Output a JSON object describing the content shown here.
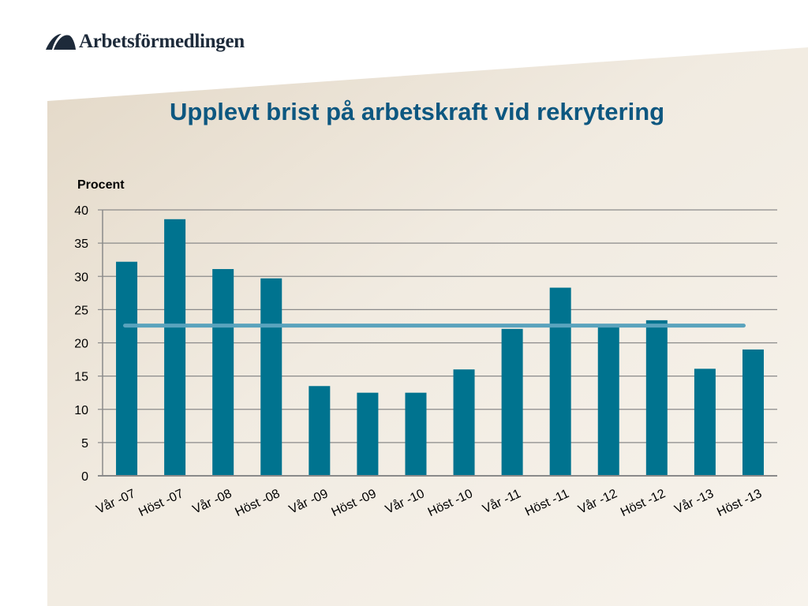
{
  "logo": {
    "text": "Arbetsförmedlingen",
    "icon": "arbetsformedlingen-logo-icon"
  },
  "title": "Upplevt brist på arbetskraft vid rekrytering",
  "chart_data": {
    "type": "bar",
    "ylabel": "Procent",
    "ylim": [
      0,
      40
    ],
    "yticks": [
      0,
      5,
      10,
      15,
      20,
      25,
      30,
      35,
      40
    ],
    "grid": true,
    "categories": [
      "Vår -07",
      "Höst -07",
      "Vår -08",
      "Höst -08",
      "Vår -09",
      "Höst -09",
      "Vår -10",
      "Höst -10",
      "Vår -11",
      "Höst -11",
      "Vår -12",
      "Höst -12",
      "Vår -13",
      "Höst -13"
    ],
    "series": [
      {
        "values": [
          32.2,
          38.6,
          31.1,
          29.7,
          13.5,
          12.5,
          12.5,
          16.0,
          22.1,
          28.3,
          22.6,
          23.4,
          16.1,
          19.0
        ],
        "color": "#00738f"
      }
    ],
    "average_line": {
      "value": 22.6,
      "color": "#5aa3bd"
    }
  }
}
